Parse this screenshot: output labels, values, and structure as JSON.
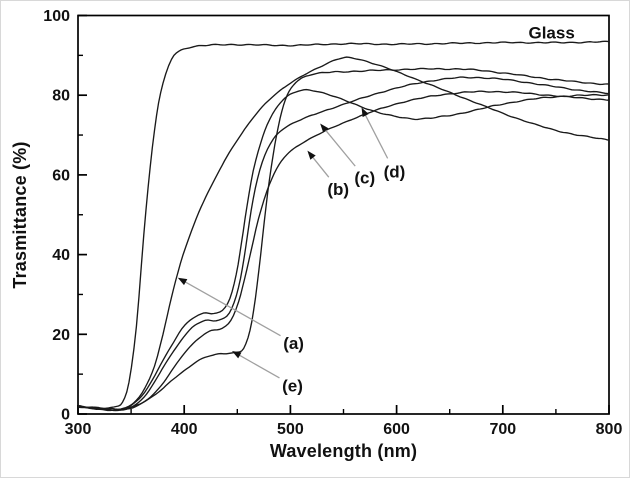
{
  "figure": {
    "background": "#ffffff",
    "frame_color": "#000000",
    "curve_color": "#1a1a1a",
    "arrow_line_color": "#a0a0a0",
    "arrow_head_color": "#111111",
    "text_color": "#111111"
  },
  "chart_data": {
    "type": "line",
    "title": "",
    "xlabel": "Wavelength (nm)",
    "ylabel": "Trasmittance (%)",
    "xlim": [
      300,
      800
    ],
    "ylim": [
      0,
      100
    ],
    "grid": false,
    "legend_position": "none",
    "x_major_ticks": [
      300,
      400,
      500,
      600,
      700,
      800
    ],
    "x_minor_ticks": [
      350,
      450,
      550,
      650,
      750
    ],
    "y_major_ticks": [
      0,
      20,
      40,
      60,
      80,
      100
    ],
    "y_minor_ticks": [
      10,
      30,
      50,
      70,
      90
    ],
    "series": [
      {
        "name": "Glass",
        "points": [
          [
            300,
            2
          ],
          [
            315,
            1.7
          ],
          [
            328,
            1.5
          ],
          [
            336,
            1.8
          ],
          [
            342,
            3
          ],
          [
            348,
            8
          ],
          [
            355,
            22
          ],
          [
            362,
            45
          ],
          [
            368,
            62
          ],
          [
            374,
            75
          ],
          [
            380,
            83
          ],
          [
            388,
            89
          ],
          [
            395,
            91
          ],
          [
            405,
            92
          ],
          [
            420,
            92.5
          ],
          [
            450,
            92.7
          ],
          [
            500,
            92.5
          ],
          [
            550,
            92.9
          ],
          [
            600,
            92.8
          ],
          [
            650,
            93.0
          ],
          [
            700,
            93.2
          ],
          [
            750,
            93.2
          ],
          [
            800,
            93.4
          ]
        ]
      },
      {
        "name": "(a)",
        "points": [
          [
            300,
            2
          ],
          [
            318,
            1.5
          ],
          [
            330,
            1.3
          ],
          [
            345,
            1.6
          ],
          [
            355,
            3.5
          ],
          [
            363,
            6.5
          ],
          [
            372,
            12
          ],
          [
            380,
            20
          ],
          [
            386,
            27
          ],
          [
            392,
            33.5
          ],
          [
            399,
            40
          ],
          [
            407,
            46
          ],
          [
            416,
            52
          ],
          [
            427,
            58
          ],
          [
            440,
            64.5
          ],
          [
            452,
            69.5
          ],
          [
            464,
            74
          ],
          [
            476,
            77.8
          ],
          [
            488,
            80.7
          ],
          [
            500,
            83
          ],
          [
            515,
            85.4
          ],
          [
            530,
            87.4
          ],
          [
            543,
            88.9
          ],
          [
            553,
            89.4
          ],
          [
            565,
            89
          ],
          [
            580,
            87.8
          ],
          [
            595,
            86.4
          ],
          [
            610,
            84.9
          ],
          [
            630,
            82.8
          ],
          [
            650,
            80.7
          ],
          [
            670,
            78.6
          ],
          [
            690,
            76.5
          ],
          [
            710,
            74.5
          ],
          [
            730,
            72.7
          ],
          [
            750,
            71.2
          ],
          [
            770,
            70
          ],
          [
            800,
            68.8
          ]
        ]
      },
      {
        "name": "(b)",
        "points": [
          [
            300,
            1.8
          ],
          [
            320,
            1.3
          ],
          [
            340,
            1
          ],
          [
            354,
            1.8
          ],
          [
            366,
            3.8
          ],
          [
            378,
            7
          ],
          [
            388,
            10.8
          ],
          [
            398,
            14.5
          ],
          [
            406,
            17
          ],
          [
            416,
            19.5
          ],
          [
            426,
            21
          ],
          [
            436,
            21.5
          ],
          [
            444,
            23.5
          ],
          [
            451,
            28
          ],
          [
            457,
            34
          ],
          [
            463,
            41
          ],
          [
            470,
            49
          ],
          [
            478,
            56
          ],
          [
            487,
            61.5
          ],
          [
            497,
            65.2
          ],
          [
            510,
            67.8
          ],
          [
            525,
            70
          ],
          [
            545,
            72.5
          ],
          [
            565,
            74.7
          ],
          [
            585,
            76.6
          ],
          [
            605,
            78.2
          ],
          [
            630,
            79.6
          ],
          [
            655,
            80.5
          ],
          [
            680,
            80.9
          ],
          [
            705,
            80.8
          ],
          [
            730,
            80.3
          ],
          [
            760,
            79.6
          ],
          [
            800,
            78.8
          ]
        ]
      },
      {
        "name": "(c)",
        "points": [
          [
            300,
            1.8
          ],
          [
            320,
            1.3
          ],
          [
            340,
            1
          ],
          [
            352,
            2
          ],
          [
            362,
            4.2
          ],
          [
            372,
            8
          ],
          [
            382,
            12.5
          ],
          [
            392,
            16.5
          ],
          [
            400,
            19.5
          ],
          [
            410,
            22.3
          ],
          [
            420,
            23.4
          ],
          [
            430,
            23.4
          ],
          [
            440,
            24.5
          ],
          [
            447,
            28
          ],
          [
            453,
            34
          ],
          [
            458,
            42
          ],
          [
            463,
            51
          ],
          [
            469,
            59
          ],
          [
            476,
            65
          ],
          [
            484,
            69
          ],
          [
            493,
            71.5
          ],
          [
            505,
            73.3
          ],
          [
            520,
            74.9
          ],
          [
            540,
            76.8
          ],
          [
            560,
            78.6
          ],
          [
            580,
            80.3
          ],
          [
            600,
            81.8
          ],
          [
            620,
            83
          ],
          [
            640,
            83.9
          ],
          [
            660,
            84.4
          ],
          [
            680,
            84.4
          ],
          [
            700,
            84
          ],
          [
            720,
            83.3
          ],
          [
            740,
            82.5
          ],
          [
            760,
            81.7
          ],
          [
            780,
            81
          ],
          [
            800,
            80.4
          ]
        ]
      },
      {
        "name": "(d)",
        "points": [
          [
            300,
            1.8
          ],
          [
            320,
            1.3
          ],
          [
            340,
            1
          ],
          [
            350,
            2.2
          ],
          [
            360,
            4.5
          ],
          [
            370,
            8.5
          ],
          [
            380,
            13.5
          ],
          [
            390,
            18
          ],
          [
            398,
            21.5
          ],
          [
            408,
            24
          ],
          [
            418,
            25.2
          ],
          [
            428,
            25.3
          ],
          [
            436,
            26
          ],
          [
            443,
            29
          ],
          [
            449,
            35
          ],
          [
            454,
            43
          ],
          [
            459,
            52
          ],
          [
            465,
            61
          ],
          [
            472,
            68
          ],
          [
            478,
            72.5
          ],
          [
            486,
            76.5
          ],
          [
            495,
            79.3
          ],
          [
            505,
            80.8
          ],
          [
            515,
            81.3
          ],
          [
            525,
            81
          ],
          [
            540,
            79.8
          ],
          [
            555,
            78.3
          ],
          [
            570,
            76.8
          ],
          [
            585,
            75.5
          ],
          [
            600,
            74.6
          ],
          [
            615,
            74.1
          ],
          [
            630,
            74.2
          ],
          [
            650,
            74.9
          ],
          [
            670,
            76
          ],
          [
            695,
            77.5
          ],
          [
            720,
            78.7
          ],
          [
            745,
            79.5
          ],
          [
            770,
            79.9
          ],
          [
            800,
            80.1
          ]
        ]
      },
      {
        "name": "(e)",
        "points": [
          [
            300,
            1.8
          ],
          [
            320,
            1.2
          ],
          [
            340,
            1
          ],
          [
            352,
            1.8
          ],
          [
            365,
            3.5
          ],
          [
            378,
            6
          ],
          [
            390,
            8.8
          ],
          [
            402,
            11.2
          ],
          [
            412,
            13.2
          ],
          [
            422,
            14.5
          ],
          [
            432,
            15
          ],
          [
            442,
            15.2
          ],
          [
            450,
            15.4
          ],
          [
            456,
            16.5
          ],
          [
            462,
            21
          ],
          [
            467,
            29
          ],
          [
            472,
            40
          ],
          [
            477,
            52
          ],
          [
            482,
            62
          ],
          [
            487,
            70
          ],
          [
            492,
            76
          ],
          [
            497,
            80
          ],
          [
            503,
            82.6
          ],
          [
            510,
            84.2
          ],
          [
            520,
            85.2
          ],
          [
            535,
            85.7
          ],
          [
            550,
            85.9
          ],
          [
            570,
            86.1
          ],
          [
            590,
            86.3
          ],
          [
            610,
            86.5
          ],
          [
            630,
            86.6
          ],
          [
            650,
            86.6
          ],
          [
            665,
            86.5
          ],
          [
            680,
            86.2
          ],
          [
            700,
            85.6
          ],
          [
            720,
            84.9
          ],
          [
            740,
            84.2
          ],
          [
            760,
            83.6
          ],
          [
            780,
            83.1
          ],
          [
            800,
            82.7
          ]
        ]
      }
    ],
    "annotations": [
      {
        "id": "glass",
        "text": "Glass",
        "x": 746,
        "y": 95.7,
        "tip_x": null,
        "tip_y": null
      },
      {
        "id": "a",
        "text": "(a)",
        "x": 503,
        "y": 17.8,
        "tip_x": 394,
        "tip_y": 34.2
      },
      {
        "id": "b",
        "text": "(b)",
        "x": 545,
        "y": 56.5,
        "tip_x": 516,
        "tip_y": 66.1
      },
      {
        "id": "c",
        "text": "(c)",
        "x": 570,
        "y": 59.3,
        "tip_x": 528,
        "tip_y": 72.9
      },
      {
        "id": "d",
        "text": "(d)",
        "x": 598,
        "y": 60.8,
        "tip_x": 567,
        "tip_y": 76.9
      },
      {
        "id": "e",
        "text": "(e)",
        "x": 502,
        "y": 7.2,
        "tip_x": 445,
        "tip_y": 15.8
      }
    ]
  }
}
